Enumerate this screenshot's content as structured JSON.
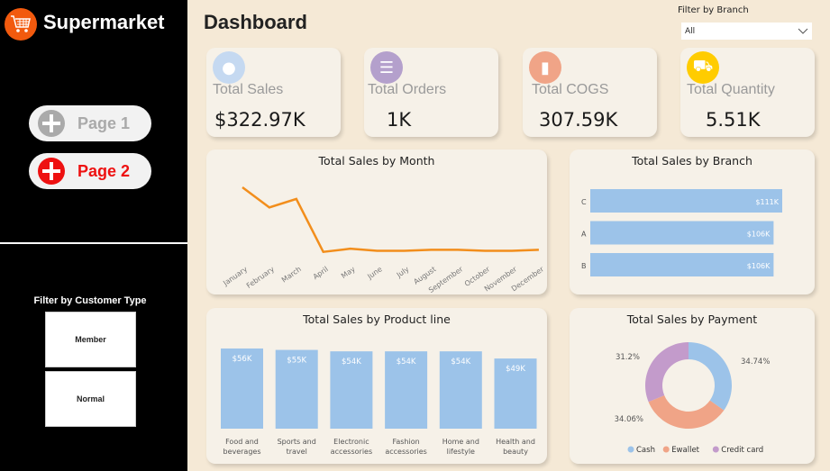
{
  "sidebar": {
    "app_name": "Supermarket",
    "logo_icon": "shopping-cart-icon",
    "pages": [
      {
        "label": "Page 1",
        "active": false,
        "color": "#aaaaaa"
      },
      {
        "label": "Page 2",
        "active": true,
        "color": "#ee1111"
      }
    ],
    "customer_filter": {
      "label": "Filter by Customer Type",
      "options": [
        "Member",
        "Normal"
      ]
    }
  },
  "header": {
    "title": "Dashboard",
    "branch_filter": {
      "label": "Filter by Branch",
      "value": "All"
    }
  },
  "kpis": [
    {
      "label": "Total Sales",
      "value": "$322.97K",
      "icon": "coins-icon",
      "color": "#c5d9f1"
    },
    {
      "label": "Total Orders",
      "value": "1K",
      "icon": "clipboard-icon",
      "color": "#b4a0cc"
    },
    {
      "label": "Total COGS",
      "value": "307.59K",
      "icon": "bar-chart-icon",
      "color": "#f0a487"
    },
    {
      "label": "Total Quantity",
      "value": "5.51K",
      "icon": "hand-truck-icon",
      "color": "#ffcc00"
    }
  ],
  "chart_data": [
    {
      "type": "line",
      "title": "Total Sales by Month",
      "color": "#f28e1c",
      "categories": [
        "January",
        "February",
        "March",
        "April",
        "May",
        "June",
        "July",
        "August",
        "September",
        "October",
        "November",
        "December"
      ],
      "values": [
        74,
        55,
        63,
        13,
        16,
        14,
        14,
        15,
        15,
        14,
        14,
        15
      ],
      "unit": "K"
    },
    {
      "type": "bar",
      "orientation": "horizontal",
      "title": "Total Sales by Branch",
      "color": "#9cc3e9",
      "categories": [
        "C",
        "A",
        "B"
      ],
      "values": [
        111,
        106,
        106
      ],
      "labels": [
        "$111K",
        "$106K",
        "$106K"
      ]
    },
    {
      "type": "bar",
      "title": "Total Sales by Product line",
      "color": "#9cc3e9",
      "categories": [
        "Food and beverages",
        "Sports and travel",
        "Electronic accessories",
        "Fashion accessories",
        "Home and lifestyle",
        "Health and beauty"
      ],
      "values": [
        56,
        55,
        54,
        54,
        54,
        49
      ],
      "labels": [
        "$56K",
        "$55K",
        "$54K",
        "$54K",
        "$54K",
        "$49K"
      ]
    },
    {
      "type": "pie",
      "donut": true,
      "title": "Total Sales by Payment",
      "legend": "bottom",
      "slices": [
        {
          "name": "Cash",
          "value": 34.74,
          "label": "34.74%",
          "color": "#9cc3e9"
        },
        {
          "name": "Ewallet",
          "value": 34.06,
          "label": "34.06%",
          "color": "#f0a487"
        },
        {
          "name": "Credit card",
          "value": 31.2,
          "label": "31.2%",
          "color": "#c39bcb"
        }
      ]
    }
  ]
}
